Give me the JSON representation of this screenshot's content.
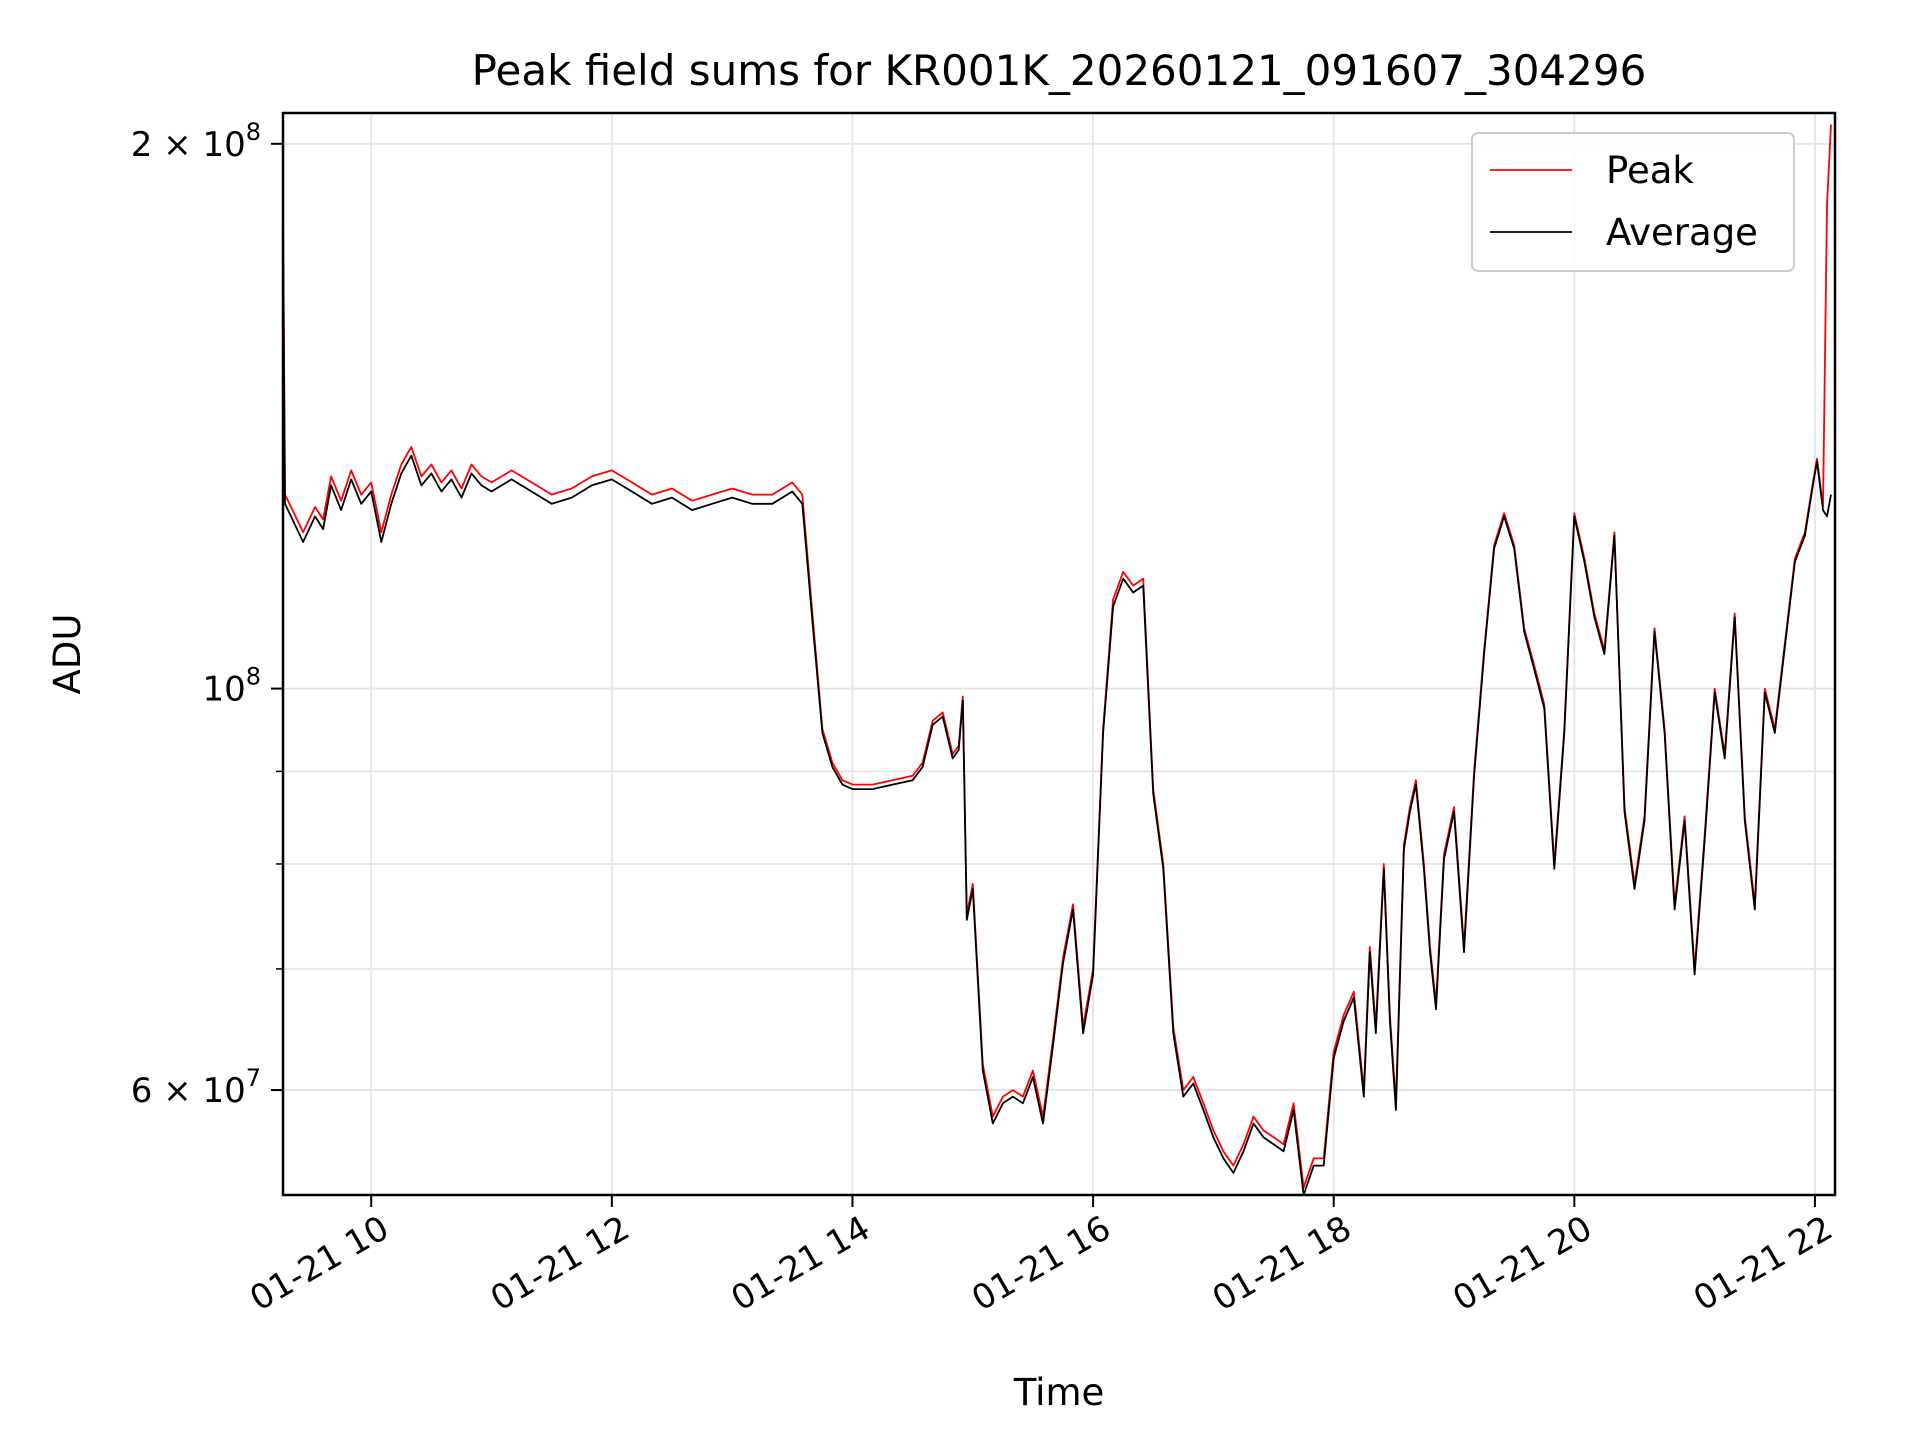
{
  "chart_data": {
    "type": "line",
    "title": "Peak field sums for KR001K_20260121_091607_304296",
    "xlabel": "Time",
    "ylabel": "ADU",
    "y_scale": "log",
    "ylim": [
      52500000,
      208000000
    ],
    "xlim": [
      "2026-01-21 09:16",
      "2026-01-21 22:10"
    ],
    "grid": true,
    "legend_position": "top-right",
    "x_ticks": [
      {
        "value": "2026-01-21 10:00",
        "label": "01-21 10"
      },
      {
        "value": "2026-01-21 12:00",
        "label": "01-21 12"
      },
      {
        "value": "2026-01-21 14:00",
        "label": "01-21 14"
      },
      {
        "value": "2026-01-21 16:00",
        "label": "01-21 16"
      },
      {
        "value": "2026-01-21 18:00",
        "label": "01-21 18"
      },
      {
        "value": "2026-01-21 20:00",
        "label": "01-21 20"
      },
      {
        "value": "2026-01-21 22:00",
        "label": "01-21 22"
      }
    ],
    "y_ticks_major": [
      {
        "value": 60000000,
        "base": "6 × 10",
        "exp": "7"
      },
      {
        "value": 100000000,
        "base": "10",
        "exp": "8"
      },
      {
        "value": 200000000,
        "base": "2 × 10",
        "exp": "8"
      }
    ],
    "y_ticks_minor": [
      70000000,
      80000000,
      90000000
    ],
    "series": [
      {
        "name": "Peak",
        "color": "#ff0000",
        "x": [
          "2026-01-21 09:16",
          "2026-01-21 09:17",
          "2026-01-21 09:20",
          "2026-01-21 09:26",
          "2026-01-21 09:32",
          "2026-01-21 09:36",
          "2026-01-21 09:40",
          "2026-01-21 09:45",
          "2026-01-21 09:50",
          "2026-01-21 09:55",
          "2026-01-21 10:00",
          "2026-01-21 10:05",
          "2026-01-21 10:10",
          "2026-01-21 10:15",
          "2026-01-21 10:20",
          "2026-01-21 10:25",
          "2026-01-21 10:30",
          "2026-01-21 10:35",
          "2026-01-21 10:40",
          "2026-01-21 10:45",
          "2026-01-21 10:50",
          "2026-01-21 10:55",
          "2026-01-21 11:00",
          "2026-01-21 11:05",
          "2026-01-21 11:10",
          "2026-01-21 11:20",
          "2026-01-21 11:30",
          "2026-01-21 11:40",
          "2026-01-21 11:50",
          "2026-01-21 12:00",
          "2026-01-21 12:10",
          "2026-01-21 12:20",
          "2026-01-21 12:30",
          "2026-01-21 12:40",
          "2026-01-21 12:50",
          "2026-01-21 13:00",
          "2026-01-21 13:10",
          "2026-01-21 13:20",
          "2026-01-21 13:30",
          "2026-01-21 13:35",
          "2026-01-21 13:40",
          "2026-01-21 13:45",
          "2026-01-21 13:50",
          "2026-01-21 13:55",
          "2026-01-21 14:00",
          "2026-01-21 14:10",
          "2026-01-21 14:20",
          "2026-01-21 14:30",
          "2026-01-21 14:35",
          "2026-01-21 14:40",
          "2026-01-21 14:45",
          "2026-01-21 14:50",
          "2026-01-21 14:53",
          "2026-01-21 14:55",
          "2026-01-21 14:57",
          "2026-01-21 15:00",
          "2026-01-21 15:05",
          "2026-01-21 15:10",
          "2026-01-21 15:15",
          "2026-01-21 15:20",
          "2026-01-21 15:25",
          "2026-01-21 15:30",
          "2026-01-21 15:35",
          "2026-01-21 15:40",
          "2026-01-21 15:45",
          "2026-01-21 15:50",
          "2026-01-21 15:55",
          "2026-01-21 16:00",
          "2026-01-21 16:05",
          "2026-01-21 16:10",
          "2026-01-21 16:15",
          "2026-01-21 16:20",
          "2026-01-21 16:25",
          "2026-01-21 16:30",
          "2026-01-21 16:35",
          "2026-01-21 16:40",
          "2026-01-21 16:45",
          "2026-01-21 16:50",
          "2026-01-21 16:55",
          "2026-01-21 17:00",
          "2026-01-21 17:05",
          "2026-01-21 17:10",
          "2026-01-21 17:15",
          "2026-01-21 17:20",
          "2026-01-21 17:25",
          "2026-01-21 17:30",
          "2026-01-21 17:35",
          "2026-01-21 17:40",
          "2026-01-21 17:45",
          "2026-01-21 17:50",
          "2026-01-21 17:55",
          "2026-01-21 18:00",
          "2026-01-21 18:05",
          "2026-01-21 18:10",
          "2026-01-21 18:15",
          "2026-01-21 18:18",
          "2026-01-21 18:21",
          "2026-01-21 18:25",
          "2026-01-21 18:28",
          "2026-01-21 18:31",
          "2026-01-21 18:35",
          "2026-01-21 18:38",
          "2026-01-21 18:41",
          "2026-01-21 18:45",
          "2026-01-21 18:48",
          "2026-01-21 18:51",
          "2026-01-21 18:55",
          "2026-01-21 19:00",
          "2026-01-21 19:05",
          "2026-01-21 19:10",
          "2026-01-21 19:15",
          "2026-01-21 19:20",
          "2026-01-21 19:25",
          "2026-01-21 19:30",
          "2026-01-21 19:35",
          "2026-01-21 19:40",
          "2026-01-21 19:45",
          "2026-01-21 19:50",
          "2026-01-21 19:55",
          "2026-01-21 20:00",
          "2026-01-21 20:05",
          "2026-01-21 20:10",
          "2026-01-21 20:15",
          "2026-01-21 20:20",
          "2026-01-21 20:25",
          "2026-01-21 20:30",
          "2026-01-21 20:35",
          "2026-01-21 20:40",
          "2026-01-21 20:45",
          "2026-01-21 20:50",
          "2026-01-21 20:55",
          "2026-01-21 21:00",
          "2026-01-21 21:05",
          "2026-01-21 21:10",
          "2026-01-21 21:15",
          "2026-01-21 21:20",
          "2026-01-21 21:25",
          "2026-01-21 21:30",
          "2026-01-21 21:35",
          "2026-01-21 21:40",
          "2026-01-21 21:45",
          "2026-01-21 21:50",
          "2026-01-21 21:55",
          "2026-01-21 21:59",
          "2026-01-21 22:01",
          "2026-01-21 22:04",
          "2026-01-21 22:06",
          "2026-01-21 22:08"
        ],
        "values": [
          185000000,
          128000000,
          126000000,
          122000000,
          126000000,
          124000000,
          131000000,
          127000000,
          132000000,
          128000000,
          130000000,
          122000000,
          128000000,
          133000000,
          136000000,
          131000000,
          133000000,
          130000000,
          132000000,
          129000000,
          133000000,
          131000000,
          130000000,
          131000000,
          132000000,
          130000000,
          128000000,
          129000000,
          131000000,
          132000000,
          130000000,
          128000000,
          129000000,
          127000000,
          128000000,
          129000000,
          128000000,
          128000000,
          130000000,
          128000000,
          110000000,
          95000000,
          91000000,
          89000000,
          88500000,
          88500000,
          89000000,
          89500000,
          91000000,
          96000000,
          97000000,
          92000000,
          93000000,
          99000000,
          75000000,
          78000000,
          62000000,
          58000000,
          59500000,
          60000000,
          59500000,
          61500000,
          58000000,
          64000000,
          71000000,
          76000000,
          65000000,
          70000000,
          95000000,
          112000000,
          116000000,
          114000000,
          115000000,
          88000000,
          80000000,
          65000000,
          60000000,
          61000000,
          59000000,
          57000000,
          55500000,
          54500000,
          56000000,
          58000000,
          57000000,
          56500000,
          56000000,
          59000000,
          53000000,
          55000000,
          55000000,
          63000000,
          66000000,
          68000000,
          60000000,
          72000000,
          65000000,
          80000000,
          66000000,
          59000000,
          82000000,
          86000000,
          89000000,
          80000000,
          72000000,
          67000000,
          81000000,
          86000000,
          72000000,
          90000000,
          105000000,
          120000000,
          125000000,
          120000000,
          108000000,
          103000000,
          98000000,
          80000000,
          95000000,
          125000000,
          118000000,
          110000000,
          105000000,
          122000000,
          86000000,
          78000000,
          85000000,
          108000000,
          95000000,
          76000000,
          85000000,
          70000000,
          83000000,
          100000000,
          92000000,
          110000000,
          85000000,
          76000000,
          100000000,
          95000000,
          106000000,
          118000000,
          122000000,
          130000000,
          134000000,
          126000000,
          185000000,
          205000000
        ]
      },
      {
        "name": "Average",
        "color": "#000000",
        "x": [
          "2026-01-21 09:16",
          "2026-01-21 09:17",
          "2026-01-21 09:20",
          "2026-01-21 09:26",
          "2026-01-21 09:32",
          "2026-01-21 09:36",
          "2026-01-21 09:40",
          "2026-01-21 09:45",
          "2026-01-21 09:50",
          "2026-01-21 09:55",
          "2026-01-21 10:00",
          "2026-01-21 10:05",
          "2026-01-21 10:10",
          "2026-01-21 10:15",
          "2026-01-21 10:20",
          "2026-01-21 10:25",
          "2026-01-21 10:30",
          "2026-01-21 10:35",
          "2026-01-21 10:40",
          "2026-01-21 10:45",
          "2026-01-21 10:50",
          "2026-01-21 10:55",
          "2026-01-21 11:00",
          "2026-01-21 11:05",
          "2026-01-21 11:10",
          "2026-01-21 11:20",
          "2026-01-21 11:30",
          "2026-01-21 11:40",
          "2026-01-21 11:50",
          "2026-01-21 12:00",
          "2026-01-21 12:10",
          "2026-01-21 12:20",
          "2026-01-21 12:30",
          "2026-01-21 12:40",
          "2026-01-21 12:50",
          "2026-01-21 13:00",
          "2026-01-21 13:10",
          "2026-01-21 13:20",
          "2026-01-21 13:30",
          "2026-01-21 13:35",
          "2026-01-21 13:40",
          "2026-01-21 13:45",
          "2026-01-21 13:50",
          "2026-01-21 13:55",
          "2026-01-21 14:00",
          "2026-01-21 14:10",
          "2026-01-21 14:20",
          "2026-01-21 14:30",
          "2026-01-21 14:35",
          "2026-01-21 14:40",
          "2026-01-21 14:45",
          "2026-01-21 14:50",
          "2026-01-21 14:53",
          "2026-01-21 14:55",
          "2026-01-21 14:57",
          "2026-01-21 15:00",
          "2026-01-21 15:05",
          "2026-01-21 15:10",
          "2026-01-21 15:15",
          "2026-01-21 15:20",
          "2026-01-21 15:25",
          "2026-01-21 15:30",
          "2026-01-21 15:35",
          "2026-01-21 15:40",
          "2026-01-21 15:45",
          "2026-01-21 15:50",
          "2026-01-21 15:55",
          "2026-01-21 16:00",
          "2026-01-21 16:05",
          "2026-01-21 16:10",
          "2026-01-21 16:15",
          "2026-01-21 16:20",
          "2026-01-21 16:25",
          "2026-01-21 16:30",
          "2026-01-21 16:35",
          "2026-01-21 16:40",
          "2026-01-21 16:45",
          "2026-01-21 16:50",
          "2026-01-21 16:55",
          "2026-01-21 17:00",
          "2026-01-21 17:05",
          "2026-01-21 17:10",
          "2026-01-21 17:15",
          "2026-01-21 17:20",
          "2026-01-21 17:25",
          "2026-01-21 17:30",
          "2026-01-21 17:35",
          "2026-01-21 17:40",
          "2026-01-21 17:45",
          "2026-01-21 17:50",
          "2026-01-21 17:55",
          "2026-01-21 18:00",
          "2026-01-21 18:05",
          "2026-01-21 18:10",
          "2026-01-21 18:15",
          "2026-01-21 18:18",
          "2026-01-21 18:21",
          "2026-01-21 18:25",
          "2026-01-21 18:28",
          "2026-01-21 18:31",
          "2026-01-21 18:35",
          "2026-01-21 18:38",
          "2026-01-21 18:41",
          "2026-01-21 18:45",
          "2026-01-21 18:48",
          "2026-01-21 18:51",
          "2026-01-21 18:55",
          "2026-01-21 19:00",
          "2026-01-21 19:05",
          "2026-01-21 19:10",
          "2026-01-21 19:15",
          "2026-01-21 19:20",
          "2026-01-21 19:25",
          "2026-01-21 19:30",
          "2026-01-21 19:35",
          "2026-01-21 19:40",
          "2026-01-21 19:45",
          "2026-01-21 19:50",
          "2026-01-21 19:55",
          "2026-01-21 20:00",
          "2026-01-21 20:05",
          "2026-01-21 20:10",
          "2026-01-21 20:15",
          "2026-01-21 20:20",
          "2026-01-21 20:25",
          "2026-01-21 20:30",
          "2026-01-21 20:35",
          "2026-01-21 20:40",
          "2026-01-21 20:45",
          "2026-01-21 20:50",
          "2026-01-21 20:55",
          "2026-01-21 21:00",
          "2026-01-21 21:05",
          "2026-01-21 21:10",
          "2026-01-21 21:15",
          "2026-01-21 21:20",
          "2026-01-21 21:25",
          "2026-01-21 21:30",
          "2026-01-21 21:35",
          "2026-01-21 21:40",
          "2026-01-21 21:45",
          "2026-01-21 21:50",
          "2026-01-21 21:55",
          "2026-01-21 21:59",
          "2026-01-21 22:01",
          "2026-01-21 22:04",
          "2026-01-21 22:06",
          "2026-01-21 22:08"
        ],
        "values": [
          180000000,
          126500000,
          124500000,
          120500000,
          124500000,
          122500000,
          129500000,
          125500000,
          130500000,
          126500000,
          128500000,
          120500000,
          126500000,
          131500000,
          134500000,
          129500000,
          131500000,
          128500000,
          130500000,
          127500000,
          131500000,
          129500000,
          128500000,
          129500000,
          130500000,
          128500000,
          126500000,
          127500000,
          129500000,
          130500000,
          128500000,
          126500000,
          127500000,
          125500000,
          126500000,
          127500000,
          126500000,
          126500000,
          128500000,
          126500000,
          109000000,
          94500000,
          90500000,
          88500000,
          88000000,
          88000000,
          88500000,
          89000000,
          90500000,
          95500000,
          96500000,
          91500000,
          92500000,
          98500000,
          74500000,
          77500000,
          61500000,
          57500000,
          59000000,
          59500000,
          59000000,
          61000000,
          57500000,
          63500000,
          70500000,
          75500000,
          64500000,
          69500000,
          94500000,
          111000000,
          115000000,
          113000000,
          114000000,
          87500000,
          79500000,
          64500000,
          59500000,
          60500000,
          58500000,
          56500000,
          55000000,
          54000000,
          55500000,
          57500000,
          56500000,
          56000000,
          55500000,
          58500000,
          52500000,
          54500000,
          54500000,
          62500000,
          65500000,
          67500000,
          59500000,
          71500000,
          64500000,
          79500000,
          65500000,
          58500000,
          81500000,
          85500000,
          88500000,
          79500000,
          71500000,
          66500000,
          80500000,
          85500000,
          71500000,
          89500000,
          104500000,
          119500000,
          124500000,
          119500000,
          107500000,
          102500000,
          97500000,
          79500000,
          94500000,
          124500000,
          117500000,
          109500000,
          104500000,
          121500000,
          85500000,
          77500000,
          84500000,
          107500000,
          94500000,
          75500000,
          84500000,
          69500000,
          82500000,
          99500000,
          91500000,
          109500000,
          84500000,
          75500000,
          99500000,
          94500000,
          105500000,
          117500000,
          121500000,
          129500000,
          133500000,
          125500000,
          124500000,
          128000000
        ]
      }
    ]
  }
}
